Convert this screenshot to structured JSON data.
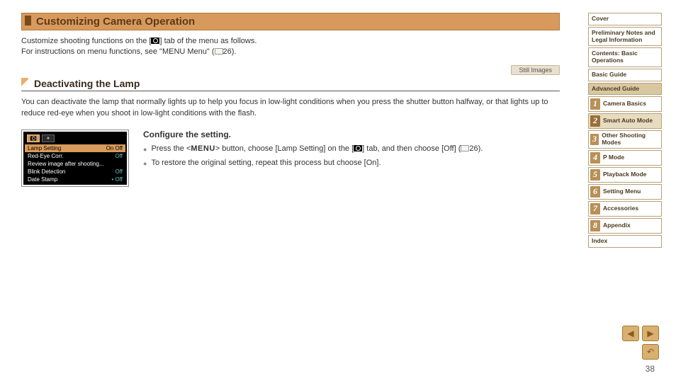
{
  "main": {
    "h1": "Customizing Camera Operation",
    "intro_a": "Customize shooting functions on the [",
    "intro_b": "] tab of the menu as follows.",
    "intro_c": "For instructions on menu functions, see \"MENU Menu\" (",
    "intro_ref": "26).",
    "pill": "Still Images",
    "h2": "Deactivating the Lamp",
    "para": "You can deactivate the lamp that normally lights up to help you focus in low-light conditions when you press the shutter button halfway, or that lights up to reduce red-eye when you shoot in low-light conditions with the flash.",
    "step_title": "Configure the setting.",
    "b1a": "Press the <",
    "b1menu": "MENU",
    "b1b": "> button, choose [Lamp Setting] on the [",
    "b1c": "] tab, and then choose [Off] (",
    "b1ref": "26).",
    "b2": "To restore the original setting, repeat this process but choose [On]."
  },
  "lcd": {
    "rows": [
      {
        "label": "Lamp Setting",
        "val": "On  Off",
        "sel": true
      },
      {
        "label": "Red-Eye Corr.",
        "val": "Off",
        "sel": false
      },
      {
        "label": "Review image after shooting...",
        "val": "",
        "sel": false
      },
      {
        "label": "Blink Detection",
        "val": "Off",
        "sel": false
      },
      {
        "label": "Date Stamp",
        "val": "• Off",
        "sel": false
      }
    ]
  },
  "side": {
    "cover": "Cover",
    "prelim": "Preliminary Notes and Legal Information",
    "contents": "Contents: Basic Operations",
    "basic": "Basic Guide",
    "advanced": "Advanced Guide",
    "items": [
      {
        "n": "1",
        "t": "Camera Basics"
      },
      {
        "n": "2",
        "t": "Smart Auto Mode"
      },
      {
        "n": "3",
        "t": "Other Shooting Modes"
      },
      {
        "n": "4",
        "t": "P Mode"
      },
      {
        "n": "5",
        "t": "Playback Mode"
      },
      {
        "n": "6",
        "t": "Setting Menu"
      },
      {
        "n": "7",
        "t": "Accessories"
      },
      {
        "n": "8",
        "t": "Appendix"
      }
    ],
    "index": "Index"
  },
  "pagenum": "38",
  "colors": {
    "accent": "#d89a5c",
    "accent_dark": "#7a4a1a",
    "side_border": "#b8a078",
    "side_shade": "#d8c8a0"
  }
}
